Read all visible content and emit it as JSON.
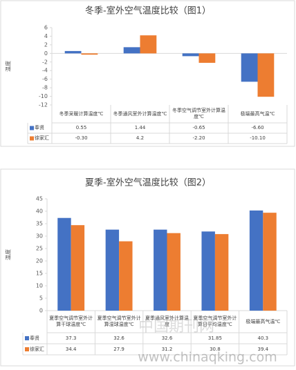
{
  "chart_data": [
    {
      "type": "bar",
      "title": "冬季-室外空气温度比较（图1）",
      "y_label": "温度",
      "categories": [
        "冬季采暖计算温度℃",
        "冬季通风室外计算温度℃",
        "冬季空气调节室外计算温度℃",
        "极端最高气温℃"
      ],
      "series": [
        {
          "name": "奉贤",
          "color": "#4472c4",
          "values": [
            0.55,
            1.44,
            -0.65,
            -6.6
          ],
          "value_labels": [
            "0.55",
            "1.44",
            "-0.65",
            "-6.60"
          ]
        },
        {
          "name": "徐家汇",
          "color": "#ed7d31",
          "values": [
            -0.3,
            4.2,
            -2.2,
            -10.1
          ],
          "value_labels": [
            "-0.30",
            "4.2",
            "-2.20",
            "-10.10"
          ]
        }
      ],
      "ylim": [
        -12,
        6
      ],
      "yticks": [
        -12,
        -10,
        -8,
        -6,
        -4,
        -2,
        0,
        2,
        4,
        6
      ],
      "grid": false
    },
    {
      "type": "bar",
      "title": "夏季-室外空气温度比较（图2）",
      "y_label": "温度",
      "categories": [
        "夏季空气调节室外计算干球温度℃",
        "夏季空气调节室外计算湿球温度℃",
        "夏季通风室外计算温度",
        "夏季空气调节室外计算日平均温度℃",
        "极端最高气温℃"
      ],
      "series": [
        {
          "name": "奉贤",
          "color": "#4472c4",
          "values": [
            37.3,
            32.6,
            32.6,
            31.85,
            40.3
          ],
          "value_labels": [
            "37.3",
            "32.6",
            "32.6",
            "31.85",
            "40.3"
          ]
        },
        {
          "name": "徐家汇",
          "color": "#ed7d31",
          "values": [
            34.4,
            27.9,
            31.2,
            30.8,
            39.4
          ],
          "value_labels": [
            "34.4",
            "27.9",
            "31.2",
            "30.8",
            "39.4"
          ]
        }
      ],
      "ylim": [
        0,
        45
      ],
      "yticks": [
        0,
        5,
        10,
        15,
        20,
        25,
        30,
        35,
        40,
        45
      ],
      "grid": false
    }
  ],
  "watermark": {
    "site": "中国期刊网",
    "url": "www.chinaqking.com"
  }
}
